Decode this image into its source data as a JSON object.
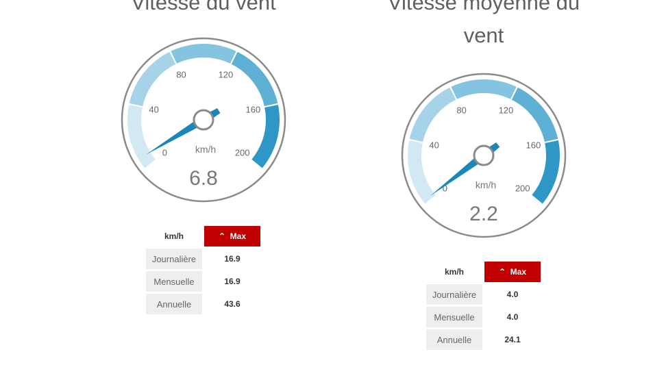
{
  "gauges": [
    {
      "title": "Vitesse du vent",
      "unit": "km/h",
      "value": 6.8,
      "value_label": "6.8",
      "min": 0,
      "max": 200,
      "ticks": [
        "0",
        "40",
        "80",
        "120",
        "160",
        "200"
      ],
      "table": {
        "unit_header": "km/h",
        "max_header": "Max",
        "rows": [
          {
            "label": "Journalière",
            "value": "16.9"
          },
          {
            "label": "Mensuelle",
            "value": "16.9"
          },
          {
            "label": "Annuelle",
            "value": "43.6"
          }
        ]
      }
    },
    {
      "title": "Vitesse moyenne du vent",
      "unit": "km/h",
      "value": 2.2,
      "value_label": "2.2",
      "min": 0,
      "max": 200,
      "ticks": [
        "0",
        "40",
        "80",
        "120",
        "160",
        "200"
      ],
      "table": {
        "unit_header": "km/h",
        "max_header": "Max",
        "rows": [
          {
            "label": "Journalière",
            "value": "4.0"
          },
          {
            "label": "Mensuelle",
            "value": "4.0"
          },
          {
            "label": "Annuelle",
            "value": "24.1"
          }
        ]
      }
    }
  ],
  "colors": {
    "bands": [
      "#d2e9f4",
      "#a6d3e8",
      "#85c4e0",
      "#5eb0d5",
      "#2f97c6"
    ],
    "needle": "#1b86b8",
    "accent": "#c00000"
  },
  "icons": {
    "sort": "chevron-up-icon"
  }
}
